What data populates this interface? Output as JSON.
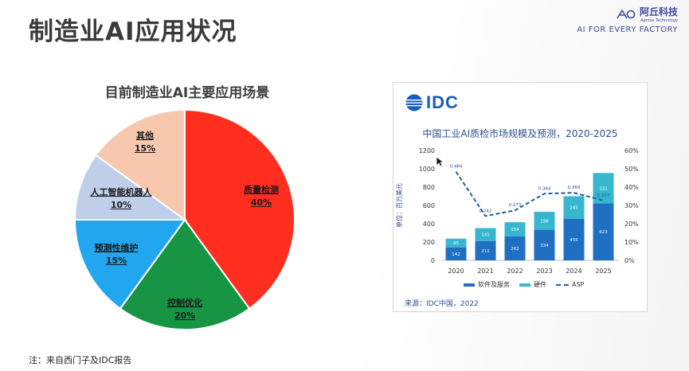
{
  "slide": {
    "title": "制造业AI应用状况",
    "footnote": "注：来自西门子及IDC报告"
  },
  "brand": {
    "name_cn": "阿丘科技",
    "name_en": "Aqrose Technology",
    "slogan": "AI FOR EVERY FACTORY"
  },
  "idc": {
    "logo_text": "IDC",
    "source": "来源：IDC中国，2022"
  },
  "chart_data": [
    {
      "type": "pie",
      "title": "目前制造业AI主要应用场景",
      "slices": [
        {
          "label": "质量检测",
          "value": 40,
          "display": "40%",
          "color": "#ff2e1f"
        },
        {
          "label": "控制优化",
          "value": 20,
          "display": "20%",
          "color": "#179444"
        },
        {
          "label": "预测性维护",
          "value": 15,
          "display": "15%",
          "color": "#21a6ef"
        },
        {
          "label": "人工智能机器人",
          "value": 10,
          "display": "10%",
          "color": "#bfcfe9"
        },
        {
          "label": "其他",
          "value": 15,
          "display": "15%",
          "color": "#f7c8ae"
        }
      ]
    },
    {
      "type": "bar",
      "title": "中国工业AI质检市场规模及预测，2020-2025",
      "ylabel": "单位：百万美元",
      "categories": [
        "2020",
        "2021",
        "2022",
        "2023",
        "2024",
        "2025"
      ],
      "ylim": [
        0,
        1200
      ],
      "yticks": [
        "0",
        "200",
        "400",
        "600",
        "800",
        "1000",
        "1200"
      ],
      "y2lim": [
        0,
        60
      ],
      "y2ticks": [
        "0%",
        "10%",
        "20%",
        "30%",
        "40%",
        "50%",
        "60%"
      ],
      "series": [
        {
          "name": "软件及服务",
          "kind": "stacked-bar",
          "color": "#1f6fc2",
          "values": [
            142,
            211,
            262,
            334,
            455,
            623
          ]
        },
        {
          "name": "硬件",
          "kind": "stacked-bar",
          "color": "#36b7cf",
          "values": [
            95,
            141,
            154,
            196,
            245,
            331
          ]
        },
        {
          "name": "ASP",
          "kind": "dashed-line-right-axis",
          "color": "#1f5f9e",
          "values": [
            48.4,
            24.2,
            27.3,
            36.4,
            36.9,
            32.7
          ],
          "labels": [
            "0.484",
            "0.242",
            "0.273",
            "0.364",
            "0.369",
            "0.327"
          ]
        }
      ],
      "grid": false,
      "legend": "bottom"
    }
  ]
}
